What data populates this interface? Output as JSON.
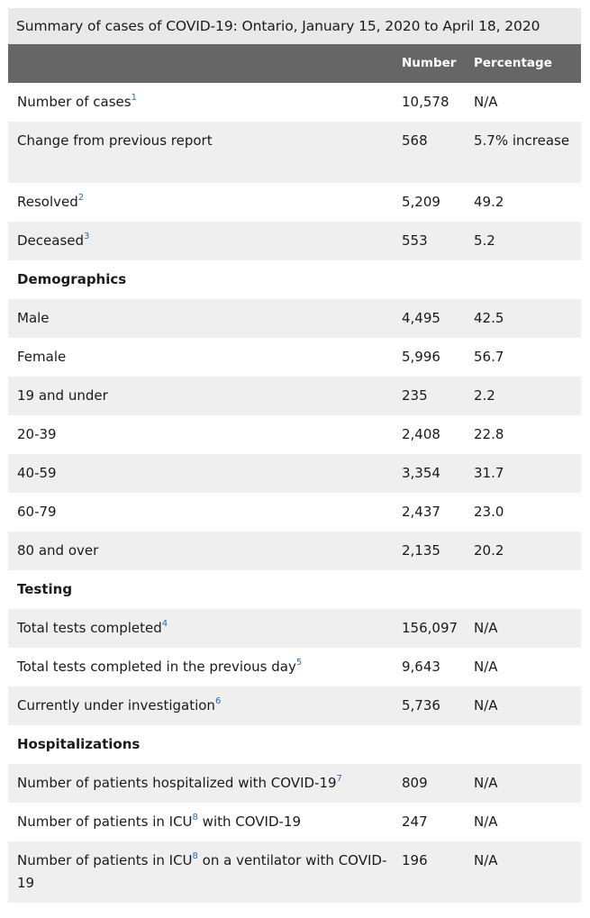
{
  "table": {
    "caption": "Summary of cases of COVID-19: Ontario, January 15, 2020 to April 18, 2020",
    "headers": {
      "label": "",
      "number": "Number",
      "percentage": "Percentage"
    },
    "rows": [
      {
        "label": "Number of cases",
        "note": "1",
        "number": "10,578",
        "percentage": "N/A"
      },
      {
        "label": "Change from previous report",
        "note": "",
        "number": "568",
        "percentage": "5.7% increase"
      },
      {
        "label": "Resolved",
        "note": "2",
        "number": "5,209",
        "percentage": "49.2"
      },
      {
        "label": "Deceased",
        "note": "3",
        "number": "553",
        "percentage": "5.2"
      },
      {
        "label": "Demographics",
        "note": "",
        "number": "",
        "percentage": ""
      },
      {
        "label": "Male",
        "note": "",
        "number": "4,495",
        "percentage": "42.5"
      },
      {
        "label": "Female",
        "note": "",
        "number": "5,996",
        "percentage": "56.7"
      },
      {
        "label": "19 and under",
        "note": "",
        "number": "235",
        "percentage": "2.2"
      },
      {
        "label": "20-39",
        "note": "",
        "number": "2,408",
        "percentage": "22.8"
      },
      {
        "label": "40-59",
        "note": "",
        "number": "3,354",
        "percentage": "31.7"
      },
      {
        "label": "60-79",
        "note": "",
        "number": "2,437",
        "percentage": "23.0"
      },
      {
        "label": "80 and over",
        "note": "",
        "number": "2,135",
        "percentage": "20.2"
      },
      {
        "label": "Testing",
        "note": "",
        "number": "",
        "percentage": ""
      },
      {
        "label": "Total tests completed",
        "note": "4",
        "number": "156,097",
        "percentage": "N/A"
      },
      {
        "label": "Total tests completed in the previous day",
        "note": "5",
        "number": "9,643",
        "percentage": "N/A"
      },
      {
        "label": "Currently under investigation",
        "note": "6",
        "number": "5,736",
        "percentage": "N/A"
      },
      {
        "label": "Hospitalizations",
        "note": "",
        "number": "",
        "percentage": ""
      },
      {
        "label": "Number of patients hospitalized with COVID-19",
        "note": "7",
        "number": "809",
        "percentage": "N/A"
      },
      {
        "label_before": "Number of patients in ICU",
        "label_note": "8",
        "label_after": " with COVID-19",
        "number": "247",
        "percentage": "N/A"
      },
      {
        "label_before": "Number of patients in ICU",
        "label_note": "8",
        "label_after": " on a ventilator with COVID-19",
        "number": "196",
        "percentage": "N/A"
      }
    ]
  },
  "colors": {
    "caption_bg": "#e9e9e9",
    "header_bg": "#666666",
    "stripe_bg": "#efefef",
    "footnote_link": "#2b6cb0"
  }
}
